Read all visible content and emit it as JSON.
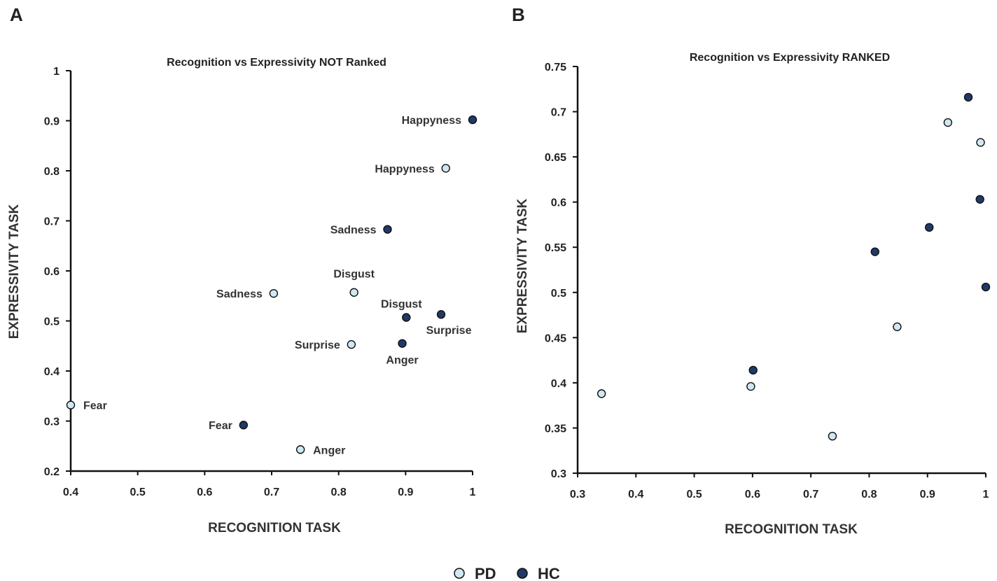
{
  "legend": [
    {
      "label": "PD",
      "color": "#cfe8f3"
    },
    {
      "label": "HC",
      "color": "#1f3a66"
    }
  ],
  "chart_data": [
    {
      "panel": "A",
      "type": "scatter",
      "title": "Recognition vs Expressivity NOT Ranked",
      "xlabel": "RECOGNITION TASK",
      "ylabel": "EXPRESSIVITY TASK",
      "xlim": [
        0.4,
        1
      ],
      "ylim": [
        0.2,
        1
      ],
      "xticks": [
        "0.4",
        "0.5",
        "0.6",
        "0.7",
        "0.8",
        "0.9",
        "1"
      ],
      "yticks": [
        "0.2",
        "0.3",
        "0.4",
        "0.5",
        "0.6",
        "0.7",
        "0.8",
        "0.9",
        "1"
      ],
      "series": [
        {
          "name": "PD",
          "color": "#cfe8f3",
          "points": [
            {
              "x": 0.4,
              "y": 0.332,
              "label": "Fear",
              "pos": "right"
            },
            {
              "x": 0.743,
              "y": 0.243,
              "label": "Anger",
              "pos": "right"
            },
            {
              "x": 0.819,
              "y": 0.453,
              "label": "Surprise",
              "pos": "left"
            },
            {
              "x": 0.703,
              "y": 0.555,
              "label": "Sadness",
              "pos": "left"
            },
            {
              "x": 0.823,
              "y": 0.557,
              "label": "Disgust",
              "pos": "above"
            },
            {
              "x": 0.96,
              "y": 0.805,
              "label": "Happyness",
              "pos": "left"
            }
          ]
        },
        {
          "name": "HC",
          "color": "#1f3a66",
          "points": [
            {
              "x": 0.658,
              "y": 0.292,
              "label": "Fear",
              "pos": "left"
            },
            {
              "x": 0.895,
              "y": 0.455,
              "label": "Anger",
              "pos": "below"
            },
            {
              "x": 0.901,
              "y": 0.507,
              "label": "Disgust",
              "pos": "aboveleft"
            },
            {
              "x": 0.953,
              "y": 0.513,
              "label": "Surprise",
              "pos": "belowright"
            },
            {
              "x": 0.873,
              "y": 0.683,
              "label": "Sadness",
              "pos": "left"
            },
            {
              "x": 1.0,
              "y": 0.902,
              "label": "Happyness",
              "pos": "left"
            }
          ]
        }
      ]
    },
    {
      "panel": "B",
      "type": "scatter",
      "title": "Recognition vs Expressivity RANKED",
      "xlabel": "RECOGNITION TASK",
      "ylabel": "EXPRESSIVITY TASK",
      "xlim": [
        0.3,
        1
      ],
      "ylim": [
        0.3,
        0.75
      ],
      "xticks": [
        "0.3",
        "0.4",
        "0.5",
        "0.6",
        "0.7",
        "0.8",
        "0.9",
        "1"
      ],
      "yticks": [
        "0.3",
        "0.35",
        "0.4",
        "0.45",
        "0.5",
        "0.55",
        "0.6",
        "0.65",
        "0.7",
        "0.75"
      ],
      "series": [
        {
          "name": "PD",
          "color": "#cfe8f3",
          "points": [
            {
              "x": 0.341,
              "y": 0.388
            },
            {
              "x": 0.597,
              "y": 0.396
            },
            {
              "x": 0.737,
              "y": 0.341
            },
            {
              "x": 0.848,
              "y": 0.462
            },
            {
              "x": 0.935,
              "y": 0.688
            },
            {
              "x": 0.991,
              "y": 0.666
            }
          ]
        },
        {
          "name": "HC",
          "color": "#1f3a66",
          "points": [
            {
              "x": 0.601,
              "y": 0.414
            },
            {
              "x": 0.81,
              "y": 0.545
            },
            {
              "x": 0.903,
              "y": 0.572
            },
            {
              "x": 0.97,
              "y": 0.716
            },
            {
              "x": 0.99,
              "y": 0.603
            },
            {
              "x": 1.0,
              "y": 0.506
            }
          ]
        }
      ]
    }
  ]
}
